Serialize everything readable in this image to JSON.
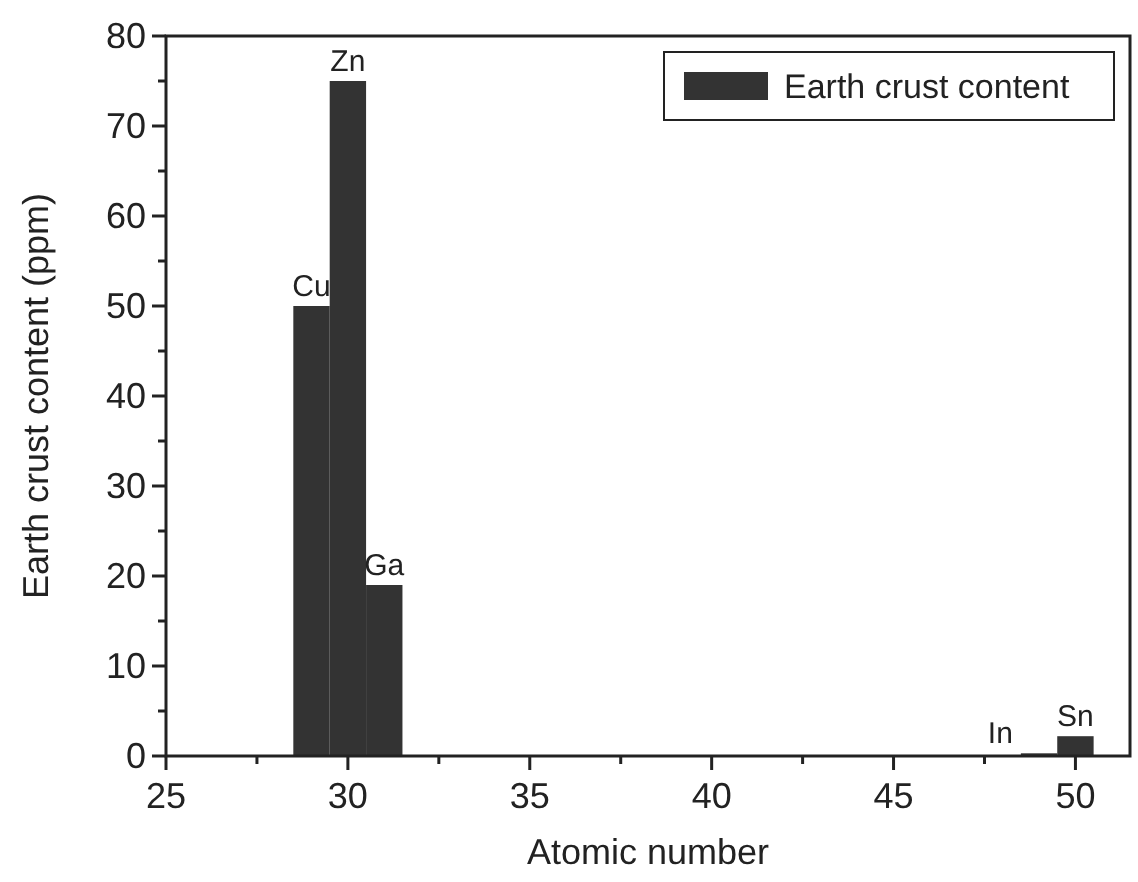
{
  "chart_data": {
    "type": "bar",
    "xlabel": "Atomic number",
    "ylabel": "Earth crust content (ppm)",
    "x": [
      29,
      30,
      31,
      49,
      50
    ],
    "series": [
      {
        "name": "Earth crust content",
        "color": "#333333",
        "values": [
          50,
          75,
          19,
          0.3,
          2.2
        ]
      }
    ],
    "xlim": [
      25,
      51.5
    ],
    "xticks": [
      25,
      {
        "value": 27.5,
        "label": null
      },
      30,
      {
        "value": 32.5,
        "label": null
      },
      35,
      {
        "value": 37.5,
        "label": null
      },
      40,
      {
        "value": 42.5,
        "label": null
      },
      45,
      {
        "value": 47.5,
        "label": null
      },
      50
    ],
    "ylim": [
      0,
      80
    ],
    "yticks": [
      0,
      {
        "value": 5,
        "label": null
      },
      10,
      {
        "value": 15,
        "label": null
      },
      20,
      {
        "value": 25,
        "label": null
      },
      30,
      {
        "value": 35,
        "label": null
      },
      40,
      {
        "value": 45,
        "label": null
      },
      50,
      {
        "value": 55,
        "label": null
      },
      60,
      {
        "value": 65,
        "label": null
      },
      70,
      {
        "value": 75,
        "label": null
      },
      80
    ],
    "annotations": [
      {
        "text": "Cu",
        "x": 29,
        "y": 50
      },
      {
        "text": "Zn",
        "x": 30,
        "y": 75
      },
      {
        "text": "Ga",
        "x": 31,
        "y": 19
      },
      {
        "text": "In",
        "x": 49,
        "y": 0.3
      },
      {
        "text": "Sn",
        "x": 50,
        "y": 2.2
      }
    ],
    "legend": "top right",
    "grid": false
  }
}
